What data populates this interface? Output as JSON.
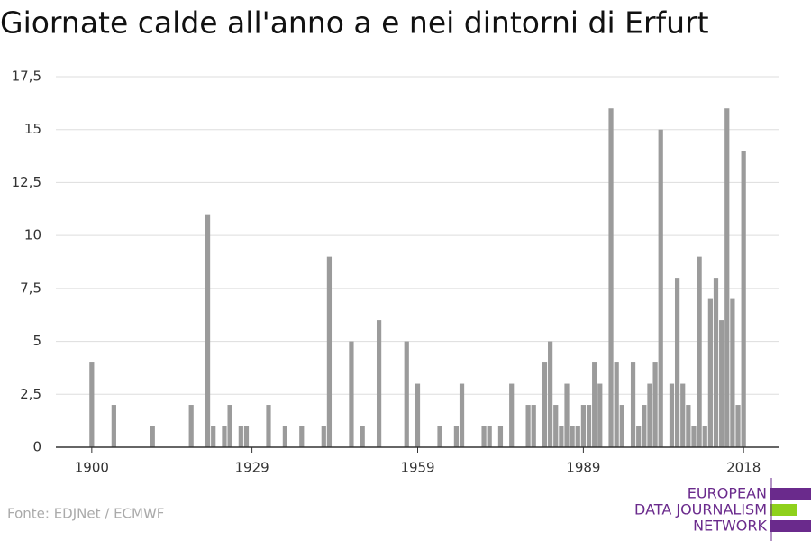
{
  "chart_data": {
    "type": "bar",
    "title": "Giornate calde all'anno a e nei dintorni di Erfurt",
    "source": "Fonte: EDJNet / ECMWF",
    "x": [
      1900,
      1904,
      1911,
      1918,
      1921,
      1922,
      1924,
      1925,
      1927,
      1928,
      1932,
      1935,
      1938,
      1942,
      1943,
      1947,
      1949,
      1952,
      1957,
      1959,
      1963,
      1966,
      1967,
      1971,
      1972,
      1974,
      1976,
      1979,
      1980,
      1982,
      1983,
      1984,
      1985,
      1986,
      1987,
      1988,
      1989,
      1990,
      1991,
      1992,
      1994,
      1995,
      1996,
      1998,
      1999,
      2000,
      2001,
      2002,
      2003,
      2005,
      2006,
      2007,
      2008,
      2009,
      2010,
      2011,
      2012,
      2013,
      2014,
      2015,
      2016,
      2017,
      2018
    ],
    "values": [
      4,
      2,
      1,
      2,
      11,
      1,
      1,
      2,
      1,
      1,
      2,
      1,
      1,
      1,
      9,
      5,
      1,
      6,
      5,
      3,
      1,
      1,
      3,
      1,
      1,
      1,
      3,
      2,
      2,
      4,
      5,
      2,
      1,
      3,
      1,
      1,
      2,
      2,
      4,
      3,
      16,
      4,
      2,
      4,
      1,
      2,
      3,
      4,
      15,
      3,
      8,
      3,
      2,
      1,
      9,
      1,
      7,
      8,
      6,
      16,
      7,
      2,
      14
    ],
    "color": "#9b9b9b",
    "xlim": [
      1893.5,
      2024.5
    ],
    "xticks": [
      1900,
      1929,
      1959,
      1989,
      2018
    ],
    "ylim": [
      0,
      17.5
    ],
    "yticks": [
      0,
      {
        "value": 2.5,
        "label": "2,5"
      },
      5,
      {
        "value": 7.5,
        "label": "7,5"
      },
      10,
      {
        "value": 12.5,
        "label": "12,5"
      },
      15,
      {
        "value": 17.5,
        "label": "17,5"
      }
    ],
    "grid": true
  },
  "logo": [
    "EUROPEAN",
    "DATA JOURNALISM",
    "NETWORK"
  ]
}
